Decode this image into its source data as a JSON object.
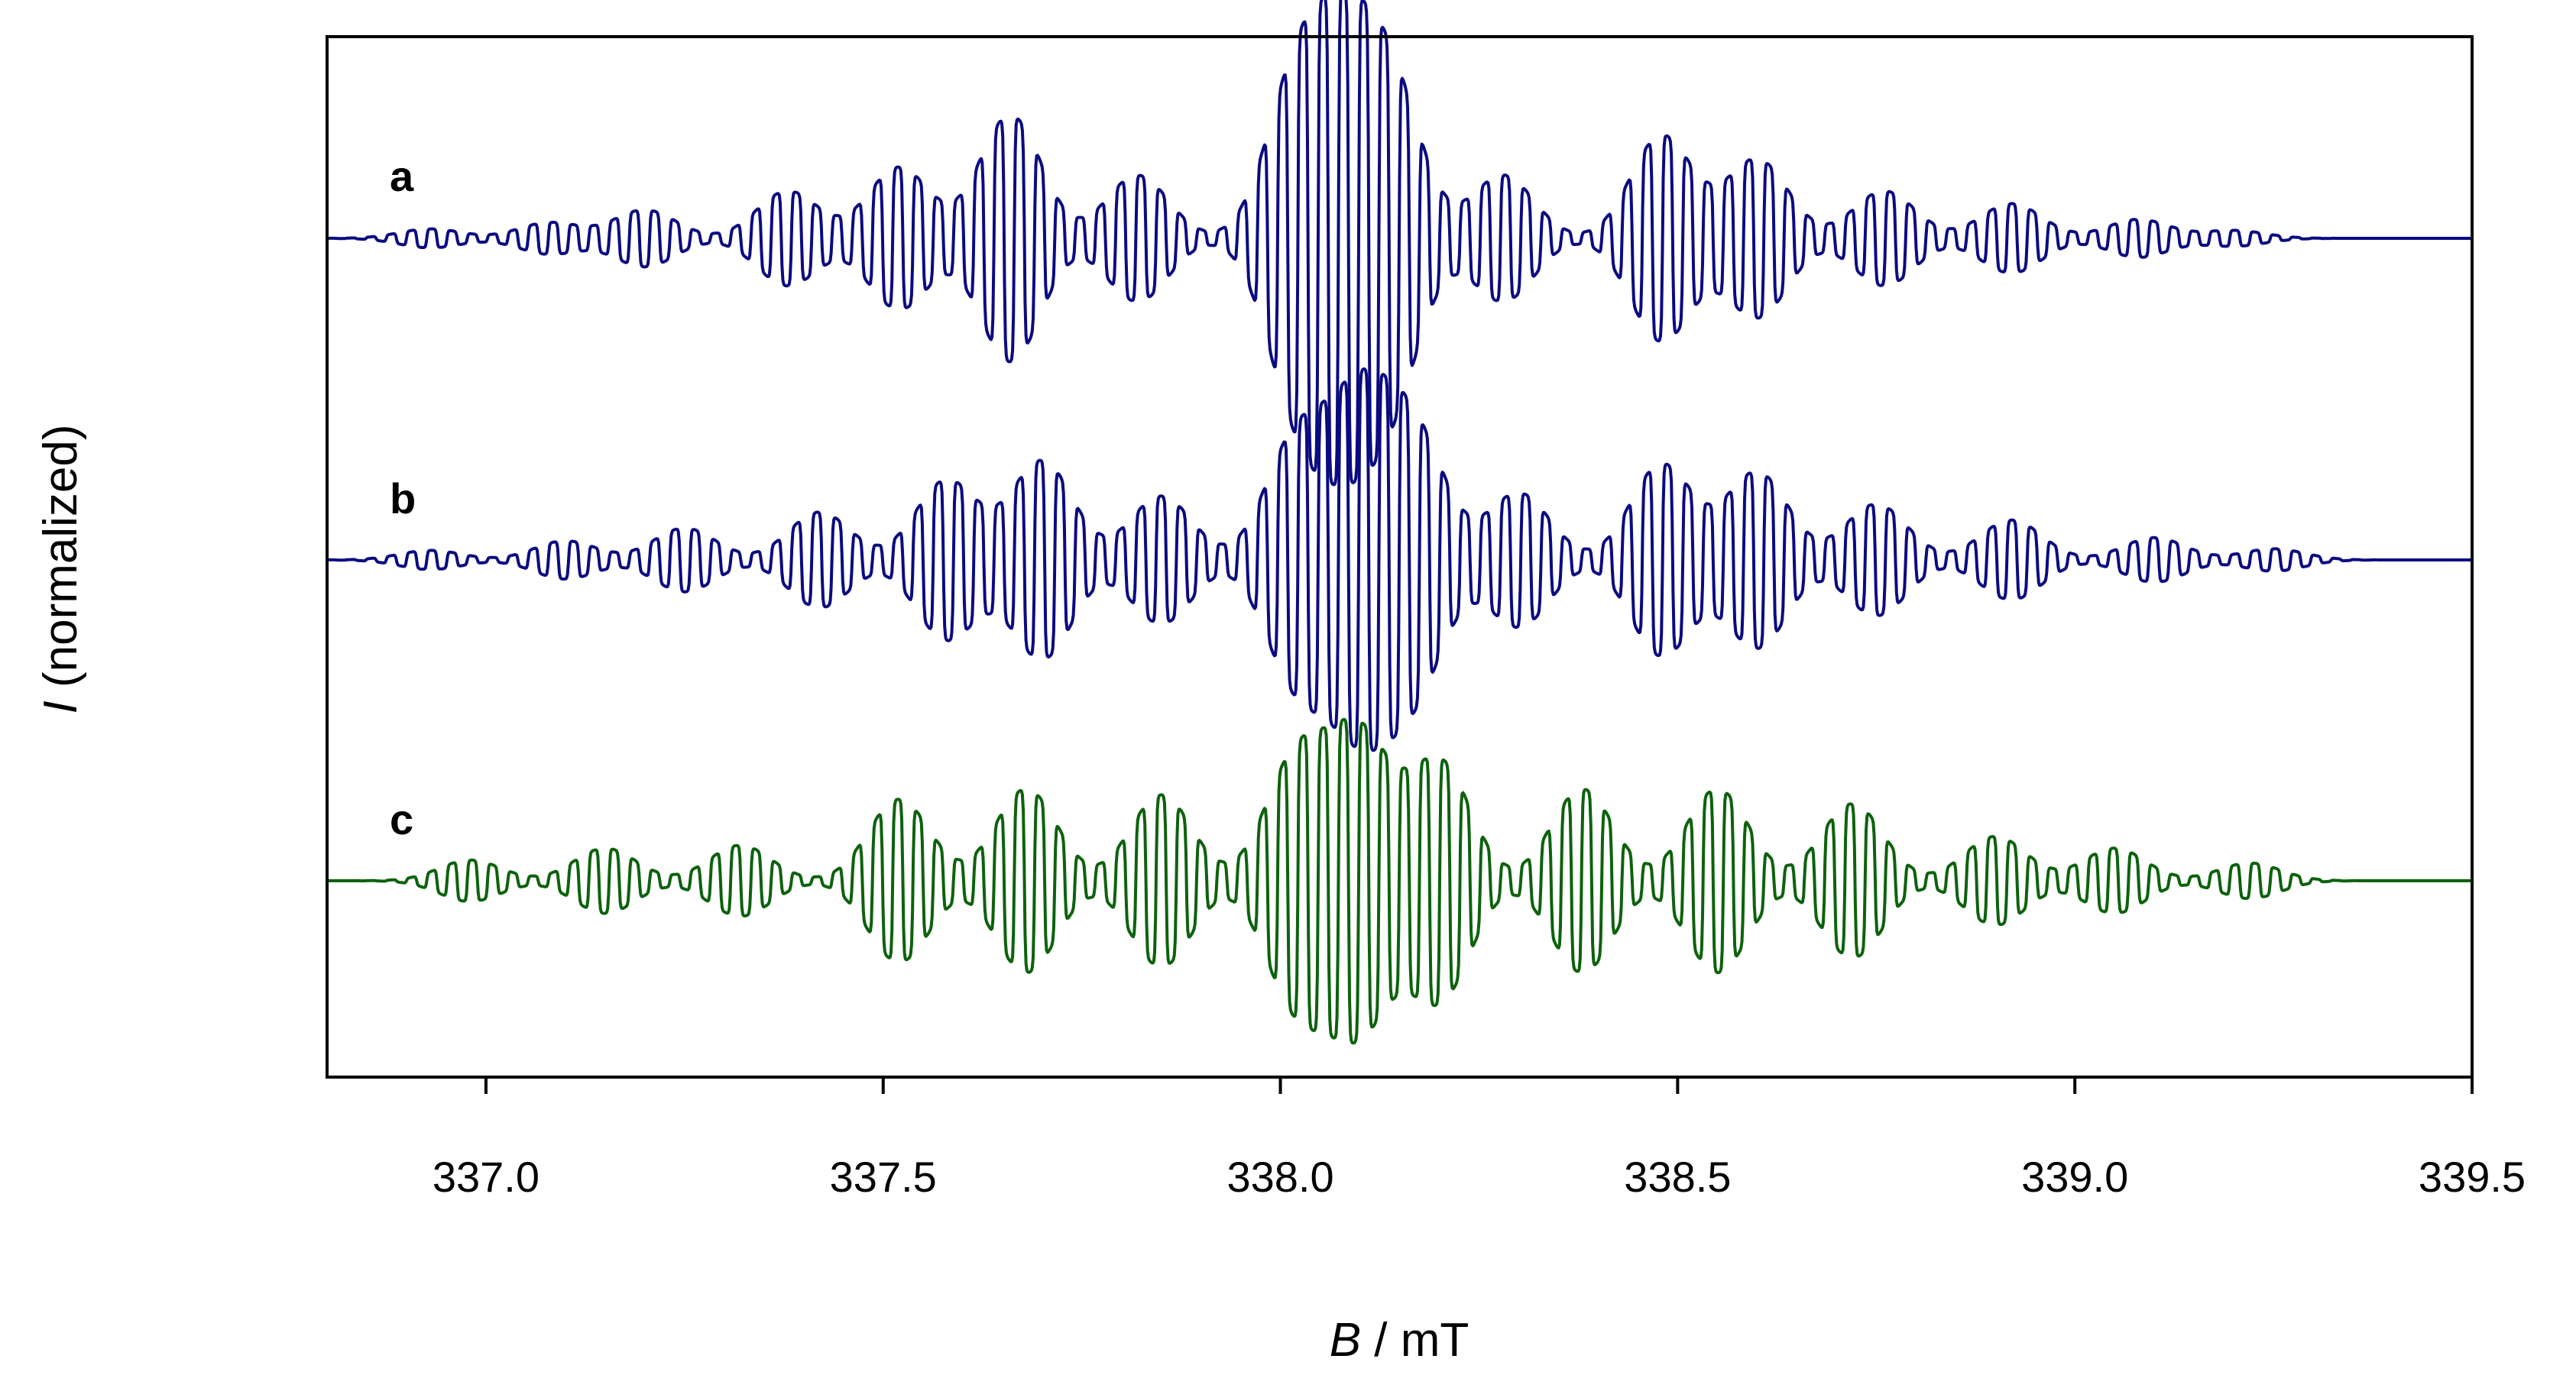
{
  "chart_data": {
    "type": "line",
    "xlabel": {
      "var": "B",
      "unit": " / mT"
    },
    "ylabel": {
      "var": "I",
      "unit": " (normalized)"
    },
    "xlim": [
      336.8,
      339.5
    ],
    "xticks": [
      "337.0",
      "337.5",
      "338.0",
      "338.5",
      "339.0",
      "339.5"
    ],
    "xtick_values": [
      337.0,
      337.5,
      338.0,
      338.5,
      339.0,
      339.5
    ],
    "yticks": [],
    "grid": false,
    "legend": "none",
    "series": [
      {
        "label": "a",
        "color": "#0b0b80",
        "line_spacing_mT": 0.0255,
        "peaks": [
          {
            "x": 336.93,
            "a": 0.06
          },
          {
            "x": 337.08,
            "a": 0.1
          },
          {
            "x": 337.2,
            "a": 0.18
          },
          {
            "x": 337.38,
            "a": 0.3
          },
          {
            "x": 337.52,
            "a": 0.45
          },
          {
            "x": 337.66,
            "a": 0.78
          },
          {
            "x": 337.82,
            "a": 0.4
          },
          {
            "x": 338.02,
            "a": 0.95
          },
          {
            "x": 338.08,
            "a": 1.0
          },
          {
            "x": 338.14,
            "a": 0.9
          },
          {
            "x": 338.28,
            "a": 0.4
          },
          {
            "x": 338.48,
            "a": 0.65
          },
          {
            "x": 338.6,
            "a": 0.5
          },
          {
            "x": 338.76,
            "a": 0.3
          },
          {
            "x": 338.92,
            "a": 0.22
          },
          {
            "x": 339.08,
            "a": 0.12
          },
          {
            "x": 339.2,
            "a": 0.05
          }
        ]
      },
      {
        "label": "b",
        "color": "#0b0b80",
        "line_spacing_mT": 0.0255,
        "peaks": [
          {
            "x": 336.93,
            "a": 0.06
          },
          {
            "x": 337.1,
            "a": 0.12
          },
          {
            "x": 337.25,
            "a": 0.2
          },
          {
            "x": 337.42,
            "a": 0.3
          },
          {
            "x": 337.58,
            "a": 0.5
          },
          {
            "x": 337.7,
            "a": 0.62
          },
          {
            "x": 337.85,
            "a": 0.4
          },
          {
            "x": 338.02,
            "a": 0.75
          },
          {
            "x": 338.1,
            "a": 0.95
          },
          {
            "x": 338.17,
            "a": 0.75
          },
          {
            "x": 338.3,
            "a": 0.42
          },
          {
            "x": 338.48,
            "a": 0.6
          },
          {
            "x": 338.6,
            "a": 0.55
          },
          {
            "x": 338.75,
            "a": 0.35
          },
          {
            "x": 338.92,
            "a": 0.25
          },
          {
            "x": 339.1,
            "a": 0.14
          },
          {
            "x": 339.25,
            "a": 0.07
          }
        ]
      },
      {
        "label": "c",
        "color": "#0d620d",
        "line_spacing_mT": 0.0255,
        "peaks": [
          {
            "x": 336.98,
            "a": 0.14
          },
          {
            "x": 337.15,
            "a": 0.22
          },
          {
            "x": 337.32,
            "a": 0.24
          },
          {
            "x": 337.52,
            "a": 0.55
          },
          {
            "x": 337.68,
            "a": 0.62
          },
          {
            "x": 337.85,
            "a": 0.58
          },
          {
            "x": 338.02,
            "a": 0.82
          },
          {
            "x": 338.1,
            "a": 0.95
          },
          {
            "x": 338.2,
            "a": 0.8
          },
          {
            "x": 338.38,
            "a": 0.62
          },
          {
            "x": 338.55,
            "a": 0.62
          },
          {
            "x": 338.72,
            "a": 0.52
          },
          {
            "x": 338.9,
            "a": 0.3
          },
          {
            "x": 339.05,
            "a": 0.22
          },
          {
            "x": 339.22,
            "a": 0.12
          }
        ]
      }
    ]
  }
}
